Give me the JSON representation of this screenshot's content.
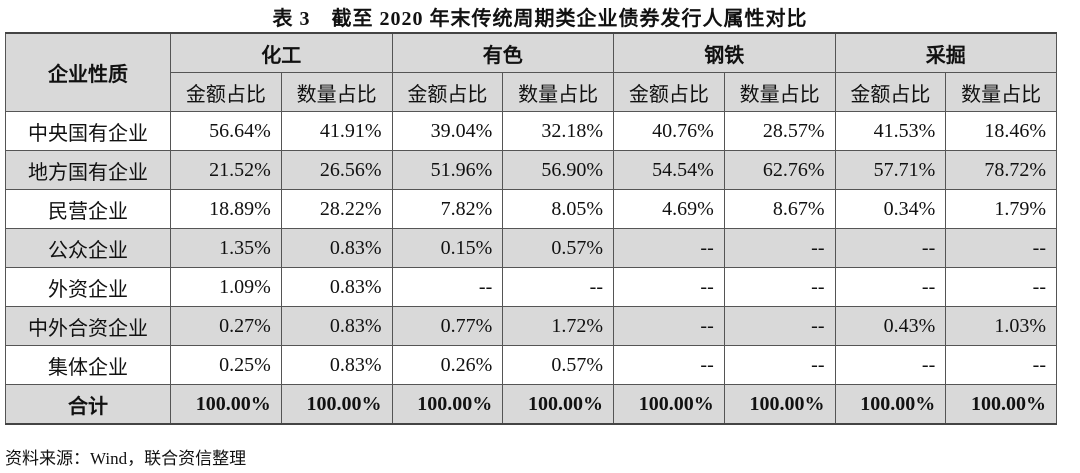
{
  "title": "表 3　截至 2020 年末传统周期类企业债券发行人属性对比",
  "table": {
    "row_header": "企业性质",
    "groups": [
      "化工",
      "有色",
      "钢铁",
      "采掘"
    ],
    "sub_headers": [
      "金额占比",
      "数量占比"
    ],
    "rows": [
      {
        "name": "中央国有企业",
        "values": [
          "56.64%",
          "41.91%",
          "39.04%",
          "32.18%",
          "40.76%",
          "28.57%",
          "41.53%",
          "18.46%"
        ]
      },
      {
        "name": "地方国有企业",
        "values": [
          "21.52%",
          "26.56%",
          "51.96%",
          "56.90%",
          "54.54%",
          "62.76%",
          "57.71%",
          "78.72%"
        ]
      },
      {
        "name": "民营企业",
        "values": [
          "18.89%",
          "28.22%",
          "7.82%",
          "8.05%",
          "4.69%",
          "8.67%",
          "0.34%",
          "1.79%"
        ]
      },
      {
        "name": "公众企业",
        "values": [
          "1.35%",
          "0.83%",
          "0.15%",
          "0.57%",
          "--",
          "--",
          "--",
          "--"
        ]
      },
      {
        "name": "外资企业",
        "values": [
          "1.09%",
          "0.83%",
          "--",
          "--",
          "--",
          "--",
          "--",
          "--"
        ]
      },
      {
        "name": "中外合资企业",
        "values": [
          "0.27%",
          "0.83%",
          "0.77%",
          "1.72%",
          "--",
          "--",
          "0.43%",
          "1.03%"
        ]
      },
      {
        "name": "集体企业",
        "values": [
          "0.25%",
          "0.83%",
          "0.26%",
          "0.57%",
          "--",
          "--",
          "--",
          "--"
        ]
      },
      {
        "name": "合计",
        "values": [
          "100.00%",
          "100.00%",
          "100.00%",
          "100.00%",
          "100.00%",
          "100.00%",
          "100.00%",
          "100.00%"
        ]
      }
    ]
  },
  "source": "资料来源：Wind，联合资信整理",
  "colors": {
    "header_bg": "#d9d9d9",
    "stripe_bg": "#d9d9d9",
    "border": "#555555"
  }
}
